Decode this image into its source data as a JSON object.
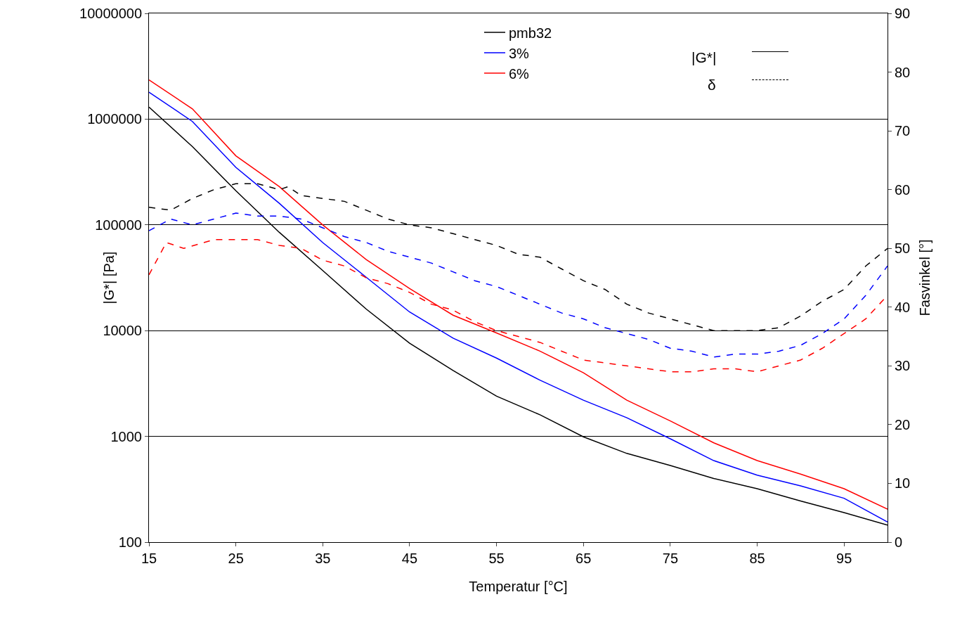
{
  "chart_data": {
    "type": "line",
    "xlabel": "Temperatur [°C]",
    "ylabel": "|G*| [Pa]",
    "y2label": "Fasvinkel [°]",
    "x": [
      15,
      20,
      25,
      30,
      35,
      40,
      45,
      50,
      55,
      60,
      65,
      70,
      75,
      80,
      85,
      90,
      95,
      100
    ],
    "series": [
      {
        "name": "pmb32",
        "color": "#000000",
        "line_style": "solid",
        "values": [
          1300000,
          550000,
          210000,
          85000,
          37000,
          16000,
          7600,
          4200,
          2400,
          1600,
          990,
          690,
          530,
          400,
          320,
          245,
          190,
          145
        ]
      },
      {
        "name": "3%",
        "color": "#0000ff",
        "line_style": "solid",
        "values": [
          1800000,
          950000,
          350000,
          160000,
          68000,
          32000,
          15000,
          8500,
          5500,
          3400,
          2200,
          1500,
          950,
          590,
          430,
          340,
          260,
          155
        ]
      },
      {
        "name": "6%",
        "color": "#ff0000",
        "line_style": "solid",
        "values": [
          2350000,
          1250000,
          450000,
          230000,
          100000,
          47000,
          25000,
          14000,
          9500,
          6400,
          4000,
          2200,
          1400,
          870,
          590,
          440,
          320,
          205
        ]
      },
      {
        "color": "#000000",
        "line_style": "dashed",
        "axis": "y2",
        "x": [
          15,
          17.5,
          20,
          22.5,
          25,
          27.5,
          30,
          31,
          32.5,
          35,
          37.5,
          40,
          42.5,
          45,
          47.5,
          50,
          52.5,
          55,
          57.5,
          60,
          62.5,
          65,
          67.5,
          70,
          72.5,
          75,
          77.5,
          80,
          82.5,
          85,
          87.5,
          90,
          92.5,
          95,
          97.5,
          100
        ],
        "values": [
          57,
          56.5,
          58.5,
          60,
          61,
          61,
          60,
          60.5,
          59,
          58.5,
          58,
          56.5,
          55,
          54,
          53.5,
          52.5,
          51.5,
          50.5,
          49,
          48.5,
          46.5,
          44.5,
          43,
          40.5,
          39,
          38,
          37,
          36,
          36,
          36,
          36.5,
          38.5,
          41,
          43,
          47,
          50
        ]
      },
      {
        "color": "#0000ff",
        "line_style": "dashed",
        "axis": "y2",
        "x": [
          15,
          17.5,
          20,
          22.5,
          25,
          27.5,
          30,
          32.5,
          35,
          37.5,
          40,
          42.5,
          45,
          47.5,
          50,
          52.5,
          55,
          57.5,
          60,
          62.5,
          65,
          67.5,
          70,
          72.5,
          75,
          77.5,
          80,
          82.5,
          85,
          87.5,
          90,
          92.5,
          95,
          97.5,
          100
        ],
        "values": [
          53,
          55,
          54,
          55,
          56,
          55.5,
          55.5,
          55,
          53.5,
          52,
          51,
          49.5,
          48.5,
          47.5,
          46,
          44.5,
          43.5,
          42,
          40.5,
          39,
          38,
          36.5,
          35.5,
          34.5,
          33,
          32.5,
          31.5,
          32,
          32,
          32.5,
          33.5,
          35.5,
          38,
          42,
          47
        ]
      },
      {
        "color": "#ff0000",
        "line_style": "dashed",
        "axis": "y2",
        "x": [
          15,
          17,
          19,
          22.5,
          25,
          27.5,
          30,
          32.5,
          35,
          37.5,
          40,
          42.5,
          45,
          47.5,
          50,
          52.5,
          55,
          57.5,
          60,
          62.5,
          65,
          67.5,
          70,
          72.5,
          75,
          77.5,
          80,
          82.5,
          85,
          87.5,
          90,
          92.5,
          95,
          97.5,
          100
        ],
        "values": [
          45.5,
          51,
          50,
          51.5,
          51.5,
          51.5,
          50.5,
          50,
          48,
          47,
          45,
          44,
          42.5,
          40.5,
          39.5,
          37.5,
          36,
          35,
          34,
          32.5,
          31,
          30.5,
          30,
          29.5,
          29,
          29,
          29.5,
          29.5,
          29,
          30,
          31,
          33,
          35.5,
          38,
          42
        ]
      }
    ],
    "xlim": [
      15,
      100
    ],
    "xticks": [
      15,
      25,
      35,
      45,
      55,
      65,
      75,
      85,
      95
    ],
    "log": true,
    "ylim": [
      100,
      10000000
    ],
    "yticks": [
      100,
      1000,
      10000,
      100000,
      1000000,
      10000000
    ],
    "y2lim": [
      0,
      90
    ],
    "y2ticks": [
      0,
      10,
      20,
      30,
      40,
      50,
      60,
      70,
      80,
      90
    ],
    "grid": "y",
    "legend": "top",
    "marker": "none",
    "annotations": [
      "|G*|",
      "δ"
    ]
  }
}
